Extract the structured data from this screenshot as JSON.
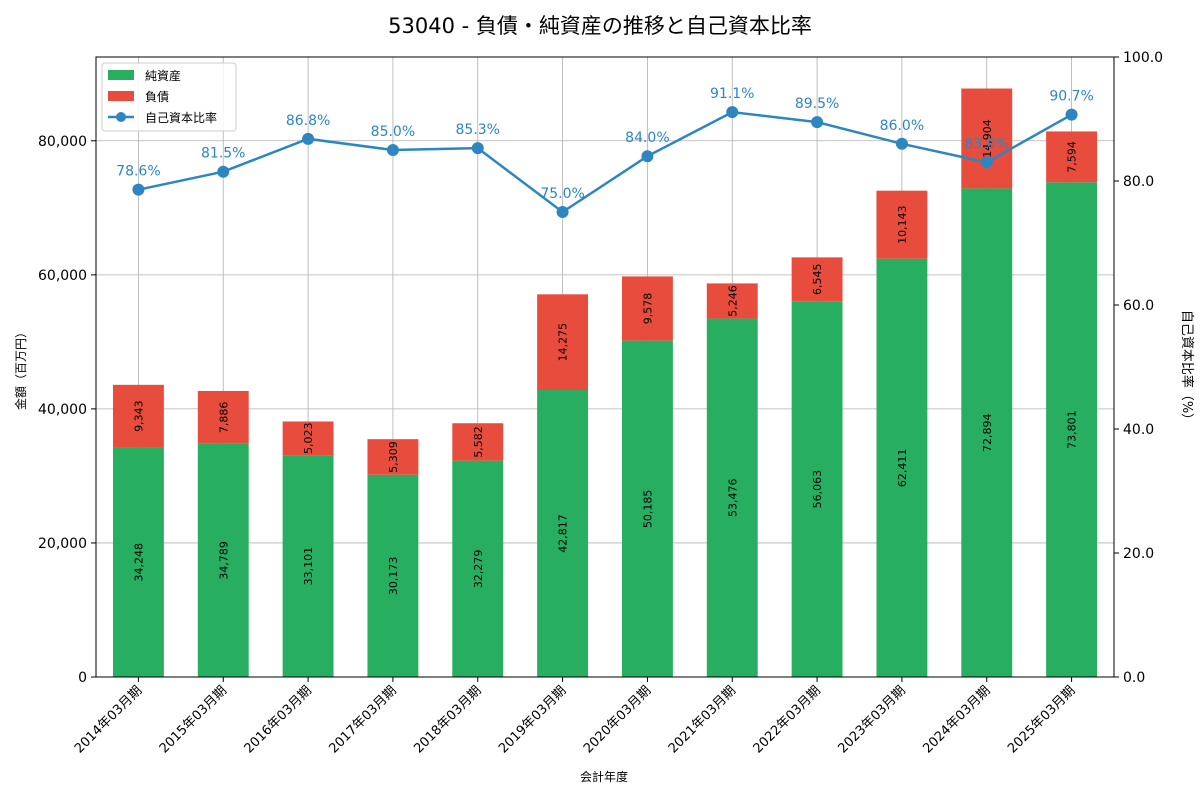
{
  "chart_data": {
    "type": "bar",
    "title": "53040 - 負債・純資産の推移と自己資本比率",
    "xlabel": "会計年度",
    "ylabel": "金額（百万円）",
    "y2label": "自己資本比率（%）",
    "categories": [
      "2014年03月期",
      "2015年03月期",
      "2016年03月期",
      "2017年03月期",
      "2018年03月期",
      "2019年03月期",
      "2020年03月期",
      "2021年03月期",
      "2022年03月期",
      "2023年03月期",
      "2024年03月期",
      "2025年03月期"
    ],
    "series": [
      {
        "name": "純資産",
        "kind": "bar",
        "color": "#27ae60",
        "values": [
          34248,
          34789,
          33101,
          30173,
          32279,
          42817,
          50185,
          53476,
          56063,
          62411,
          72894,
          73801
        ]
      },
      {
        "name": "負債",
        "kind": "bar",
        "color": "#e74c3c",
        "values": [
          9343,
          7886,
          5023,
          5309,
          5582,
          14275,
          9578,
          5246,
          6545,
          10143,
          14904,
          7594
        ]
      },
      {
        "name": "自己資本比率",
        "kind": "line",
        "axis": "right",
        "color": "#2e86c1",
        "values": [
          78.6,
          81.5,
          86.8,
          85.0,
          85.3,
          75.0,
          84.0,
          91.1,
          89.5,
          86.0,
          83.0,
          90.7
        ]
      }
    ],
    "value_labels": {
      "equity": [
        "34,248",
        "34,789",
        "33,101",
        "30,173",
        "32,279",
        "42,817",
        "50,185",
        "53,476",
        "56,063",
        "62,411",
        "72,894",
        "73,801"
      ],
      "liabilities": [
        "9,343",
        "7,886",
        "5,023",
        "5,309",
        "5,582",
        "14,275",
        "9,578",
        "5,246",
        "6,545",
        "10,143",
        "14,904",
        "7,594"
      ],
      "ratio": [
        "78.6%",
        "81.5%",
        "86.8%",
        "85.0%",
        "85.3%",
        "75.0%",
        "84.0%",
        "91.1%",
        "89.5%",
        "86.0%",
        "83.0%",
        "90.7%"
      ]
    },
    "ylim": [
      0,
      92500
    ],
    "y2lim": [
      0,
      100
    ],
    "yticks": [
      "0",
      "20,000",
      "40,000",
      "60,000",
      "80,000"
    ],
    "yticks_values": [
      0,
      20000,
      40000,
      60000,
      80000
    ],
    "y2ticks": [
      "0.0",
      "20.0",
      "40.0",
      "60.0",
      "80.0",
      "100.0"
    ],
    "y2ticks_values": [
      0,
      20,
      40,
      60,
      80,
      100
    ],
    "grid": true,
    "legend_position": "top-left"
  }
}
